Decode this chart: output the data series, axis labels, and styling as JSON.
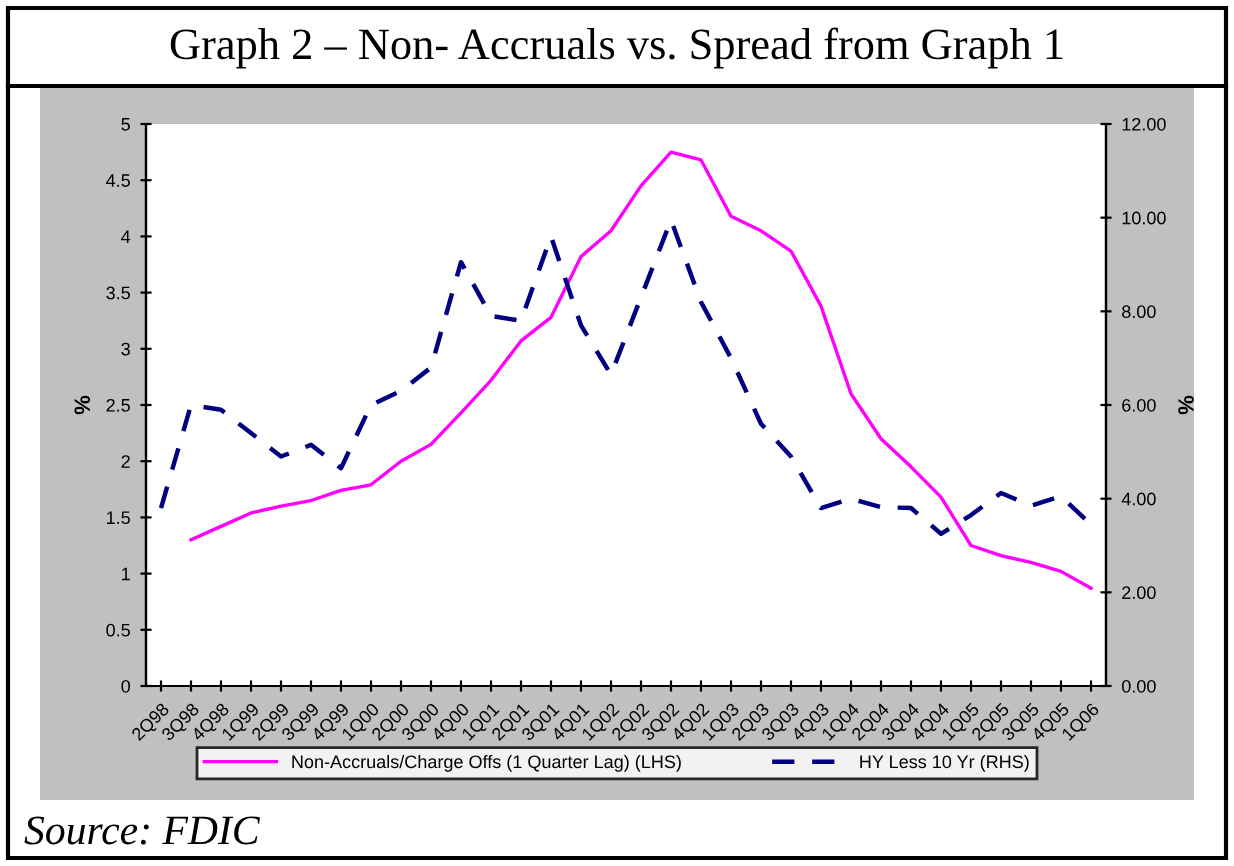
{
  "chart_data": {
    "type": "line",
    "title": "Graph 2 – Non- Accruals vs. Spread from Graph 1",
    "categories": [
      "2Q98",
      "3Q98",
      "4Q98",
      "1Q99",
      "2Q99",
      "3Q99",
      "4Q99",
      "1Q00",
      "2Q00",
      "3Q00",
      "4Q00",
      "1Q01",
      "2Q01",
      "3Q01",
      "4Q01",
      "1Q02",
      "2Q02",
      "3Q02",
      "4Q02",
      "1Q03",
      "2Q03",
      "3Q03",
      "4Q03",
      "1Q04",
      "2Q04",
      "3Q04",
      "4Q04",
      "1Q05",
      "2Q05",
      "3Q05",
      "4Q05",
      "1Q06"
    ],
    "series": [
      {
        "name": "Non-Accruals/Charge Offs (1 Quarter Lag) (LHS)",
        "color": "#ff00ff",
        "line_style": "solid",
        "values": [
          null,
          1.3,
          1.42,
          1.54,
          1.6,
          1.65,
          1.74,
          1.79,
          2.0,
          2.15,
          2.43,
          2.72,
          3.07,
          3.28,
          3.82,
          4.05,
          4.45,
          4.75,
          4.68,
          4.18,
          4.05,
          3.87,
          3.38,
          2.6,
          2.2,
          1.95,
          1.68,
          1.25,
          1.16,
          1.1,
          1.02,
          0.87
        ]
      },
      {
        "name": "HY Less 10 Yr (RHS)",
        "color": "#000080",
        "line_style": "dashed",
        "axis": "y2",
        "values": [
          3.8,
          6.0,
          5.9,
          5.4,
          4.9,
          5.15,
          4.65,
          6.0,
          6.3,
          6.8,
          9.05,
          7.9,
          7.8,
          9.6,
          7.7,
          6.65,
          8.3,
          9.95,
          8.2,
          7.0,
          5.6,
          4.9,
          3.8,
          4.0,
          3.82,
          3.8,
          3.25,
          3.65,
          4.12,
          3.85,
          4.05,
          3.45
        ]
      }
    ],
    "ylabel": "%",
    "y2label": "%",
    "ylim": [
      0,
      5
    ],
    "yticks": [
      0,
      0.5,
      1,
      1.5,
      2,
      2.5,
      3,
      3.5,
      4,
      4.5,
      5
    ],
    "y2lim": [
      0,
      12
    ],
    "y2ticks": [
      {
        "value": 0,
        "label": "0.00"
      },
      {
        "value": 2,
        "label": "2.00"
      },
      {
        "value": 4,
        "label": "4.00"
      },
      {
        "value": 6,
        "label": "6.00"
      },
      {
        "value": 8,
        "label": "8.00"
      },
      {
        "value": 10,
        "label": "10.00"
      },
      {
        "value": 12,
        "label": "12.00"
      }
    ],
    "legend": "bottom",
    "grid": false,
    "annotations": [
      "Source: FDIC"
    ]
  }
}
